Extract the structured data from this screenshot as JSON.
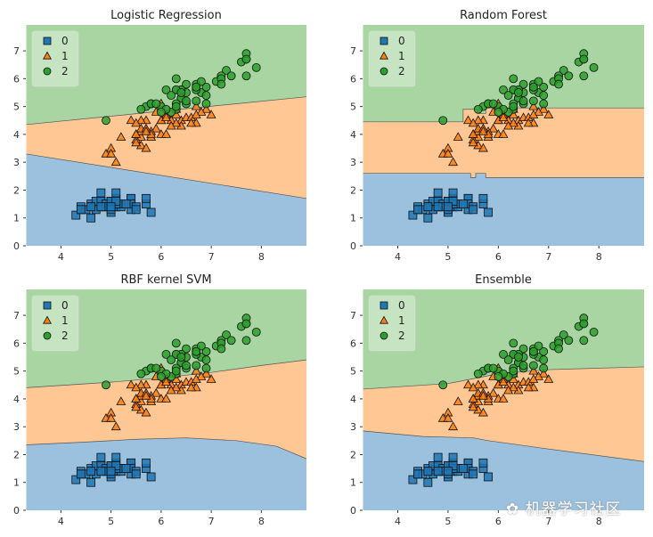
{
  "chart_data": [
    {
      "type": "scatter",
      "title": "Logistic Regression",
      "xlim": [
        3.3,
        8.9
      ],
      "ylim": [
        0,
        7.93
      ],
      "xticks": [
        4,
        5,
        6,
        7,
        8
      ],
      "yticks": [
        0,
        1,
        2,
        3,
        4,
        5,
        6,
        7
      ],
      "boundaries": {
        "lower": [
          [
            3.3,
            3.3
          ],
          [
            8.9,
            1.7
          ]
        ],
        "upper": [
          [
            3.3,
            4.35
          ],
          [
            8.9,
            5.35
          ]
        ]
      }
    },
    {
      "type": "scatter",
      "title": "Random Forest",
      "xlim": [
        3.3,
        8.9
      ],
      "ylim": [
        0,
        7.93
      ],
      "xticks": [
        4,
        5,
        6,
        7,
        8
      ],
      "yticks": [
        0,
        1,
        2,
        3,
        4,
        5,
        6,
        7
      ],
      "boundaries": {
        "lower": [
          [
            3.3,
            2.6
          ],
          [
            5.45,
            2.6
          ],
          [
            5.45,
            2.45
          ],
          [
            5.55,
            2.45
          ],
          [
            5.55,
            2.6
          ],
          [
            5.75,
            2.6
          ],
          [
            5.75,
            2.45
          ],
          [
            8.9,
            2.45
          ]
        ],
        "upper": [
          [
            3.3,
            4.45
          ],
          [
            5.3,
            4.45
          ],
          [
            5.3,
            4.9
          ],
          [
            5.6,
            4.9
          ],
          [
            5.6,
            4.75
          ],
          [
            5.75,
            4.75
          ],
          [
            5.75,
            4.95
          ],
          [
            8.9,
            4.95
          ]
        ]
      }
    },
    {
      "type": "scatter",
      "title": "RBF kernel SVM",
      "xlim": [
        3.3,
        8.9
      ],
      "ylim": [
        0,
        7.93
      ],
      "xticks": [
        4,
        5,
        6,
        7,
        8
      ],
      "yticks": [
        0,
        1,
        2,
        3,
        4,
        5,
        6,
        7
      ],
      "boundaries": {
        "lower": [
          [
            3.3,
            2.35
          ],
          [
            4.5,
            2.45
          ],
          [
            5.5,
            2.55
          ],
          [
            6.5,
            2.6
          ],
          [
            7.5,
            2.5
          ],
          [
            8.3,
            2.3
          ],
          [
            8.9,
            1.85
          ]
        ],
        "upper": [
          [
            3.3,
            4.4
          ],
          [
            5,
            4.6
          ],
          [
            6,
            4.75
          ],
          [
            7,
            4.95
          ],
          [
            8,
            5.2
          ],
          [
            8.9,
            5.4
          ]
        ]
      }
    },
    {
      "type": "scatter",
      "title": "Ensemble",
      "xlim": [
        3.3,
        8.9
      ],
      "ylim": [
        0,
        7.93
      ],
      "xticks": [
        4,
        5,
        6,
        7,
        8
      ],
      "yticks": [
        0,
        1,
        2,
        3,
        4,
        5,
        6,
        7
      ],
      "boundaries": {
        "lower": [
          [
            3.3,
            2.85
          ],
          [
            4.5,
            2.65
          ],
          [
            5.5,
            2.6
          ],
          [
            5.8,
            2.5
          ],
          [
            7,
            2.2
          ],
          [
            8.9,
            1.75
          ]
        ],
        "upper": [
          [
            3.3,
            4.35
          ],
          [
            5,
            4.55
          ],
          [
            6,
            4.9
          ],
          [
            7,
            5.05
          ],
          [
            8.9,
            5.15
          ]
        ]
      }
    }
  ],
  "legend": {
    "labels": [
      "0",
      "1",
      "2"
    ],
    "placement": "top-left"
  },
  "colors": {
    "region": [
      "#9bc1de",
      "#ffc794",
      "#a8d5a2"
    ],
    "marker": [
      "#1f77b4",
      "#ff7f0e",
      "#2ca02c"
    ]
  },
  "points": {
    "class0": [
      [
        5.1,
        1.4
      ],
      [
        4.9,
        1.4
      ],
      [
        4.7,
        1.3
      ],
      [
        4.6,
        1.5
      ],
      [
        5.0,
        1.4
      ],
      [
        5.4,
        1.7
      ],
      [
        4.6,
        1.4
      ],
      [
        5.0,
        1.5
      ],
      [
        4.4,
        1.4
      ],
      [
        4.9,
        1.5
      ],
      [
        5.4,
        1.5
      ],
      [
        4.8,
        1.6
      ],
      [
        4.8,
        1.4
      ],
      [
        4.3,
        1.1
      ],
      [
        5.8,
        1.2
      ],
      [
        5.7,
        1.5
      ],
      [
        5.4,
        1.3
      ],
      [
        5.1,
        1.4
      ],
      [
        5.7,
        1.7
      ],
      [
        5.1,
        1.5
      ],
      [
        5.4,
        1.7
      ],
      [
        5.1,
        1.5
      ],
      [
        4.6,
        1.0
      ],
      [
        5.1,
        1.7
      ],
      [
        4.8,
        1.9
      ],
      [
        5.0,
        1.6
      ],
      [
        5.0,
        1.6
      ],
      [
        5.2,
        1.5
      ],
      [
        5.2,
        1.4
      ],
      [
        4.7,
        1.6
      ],
      [
        4.8,
        1.6
      ],
      [
        5.4,
        1.5
      ],
      [
        5.2,
        1.5
      ],
      [
        5.5,
        1.4
      ],
      [
        4.9,
        1.5
      ],
      [
        5.0,
        1.2
      ],
      [
        5.5,
        1.3
      ],
      [
        4.9,
        1.4
      ],
      [
        4.4,
        1.3
      ],
      [
        5.1,
        1.5
      ],
      [
        5.0,
        1.3
      ],
      [
        4.5,
        1.3
      ],
      [
        4.4,
        1.3
      ],
      [
        5.0,
        1.6
      ],
      [
        5.1,
        1.9
      ],
      [
        4.8,
        1.4
      ],
      [
        5.1,
        1.6
      ],
      [
        4.6,
        1.4
      ],
      [
        5.3,
        1.5
      ],
      [
        5.0,
        1.4
      ]
    ],
    "class1": [
      [
        7.0,
        4.7
      ],
      [
        6.4,
        4.5
      ],
      [
        6.9,
        4.9
      ],
      [
        5.5,
        4.0
      ],
      [
        6.5,
        4.6
      ],
      [
        5.7,
        4.5
      ],
      [
        6.3,
        4.7
      ],
      [
        4.9,
        3.3
      ],
      [
        6.6,
        4.6
      ],
      [
        5.2,
        3.9
      ],
      [
        5.0,
        3.5
      ],
      [
        5.9,
        4.2
      ],
      [
        6.0,
        4.0
      ],
      [
        6.1,
        4.7
      ],
      [
        5.6,
        3.6
      ],
      [
        6.7,
        4.4
      ],
      [
        5.6,
        4.5
      ],
      [
        5.8,
        4.1
      ],
      [
        6.2,
        4.5
      ],
      [
        5.6,
        3.9
      ],
      [
        5.9,
        4.8
      ],
      [
        6.1,
        4.0
      ],
      [
        6.3,
        4.9
      ],
      [
        6.1,
        4.7
      ],
      [
        6.4,
        4.3
      ],
      [
        6.6,
        4.4
      ],
      [
        6.8,
        4.8
      ],
      [
        6.7,
        5.0
      ],
      [
        6.0,
        4.5
      ],
      [
        5.7,
        3.5
      ],
      [
        5.5,
        3.8
      ],
      [
        5.5,
        3.7
      ],
      [
        5.8,
        3.9
      ],
      [
        6.0,
        5.1
      ],
      [
        5.4,
        4.5
      ],
      [
        6.0,
        4.5
      ],
      [
        6.7,
        4.7
      ],
      [
        6.3,
        4.4
      ],
      [
        5.6,
        4.1
      ],
      [
        5.5,
        4.0
      ],
      [
        5.5,
        4.4
      ],
      [
        6.1,
        4.6
      ],
      [
        5.8,
        4.0
      ],
      [
        5.0,
        3.3
      ],
      [
        5.6,
        4.2
      ],
      [
        5.7,
        4.2
      ],
      [
        5.7,
        4.2
      ],
      [
        6.2,
        4.3
      ],
      [
        5.1,
        3.0
      ],
      [
        5.7,
        4.1
      ]
    ],
    "class2": [
      [
        6.3,
        6.0
      ],
      [
        5.8,
        5.1
      ],
      [
        7.1,
        5.9
      ],
      [
        6.3,
        5.6
      ],
      [
        6.5,
        5.8
      ],
      [
        7.6,
        6.6
      ],
      [
        4.9,
        4.5
      ],
      [
        7.3,
        6.3
      ],
      [
        6.7,
        5.8
      ],
      [
        7.2,
        6.1
      ],
      [
        6.5,
        5.1
      ],
      [
        6.4,
        5.3
      ],
      [
        6.8,
        5.5
      ],
      [
        5.7,
        5.0
      ],
      [
        5.8,
        5.1
      ],
      [
        6.4,
        5.3
      ],
      [
        6.5,
        5.5
      ],
      [
        7.7,
        6.7
      ],
      [
        7.7,
        6.9
      ],
      [
        6.0,
        5.0
      ],
      [
        6.9,
        5.7
      ],
      [
        5.6,
        4.9
      ],
      [
        7.7,
        6.7
      ],
      [
        6.3,
        4.9
      ],
      [
        6.7,
        5.7
      ],
      [
        7.2,
        6.0
      ],
      [
        6.2,
        4.8
      ],
      [
        6.1,
        4.9
      ],
      [
        6.4,
        5.6
      ],
      [
        7.2,
        5.8
      ],
      [
        7.4,
        6.1
      ],
      [
        7.9,
        6.4
      ],
      [
        6.4,
        5.6
      ],
      [
        6.3,
        5.1
      ],
      [
        6.1,
        5.6
      ],
      [
        7.7,
        6.1
      ],
      [
        6.3,
        5.6
      ],
      [
        6.4,
        5.5
      ],
      [
        6.0,
        4.8
      ],
      [
        6.9,
        5.4
      ],
      [
        6.7,
        5.6
      ],
      [
        6.9,
        5.1
      ],
      [
        5.8,
        5.1
      ],
      [
        6.8,
        5.9
      ],
      [
        6.7,
        5.7
      ],
      [
        6.7,
        5.2
      ],
      [
        6.3,
        5.0
      ],
      [
        6.5,
        5.2
      ],
      [
        6.2,
        5.4
      ],
      [
        5.9,
        5.1
      ]
    ]
  },
  "watermark": "机器学习社区"
}
